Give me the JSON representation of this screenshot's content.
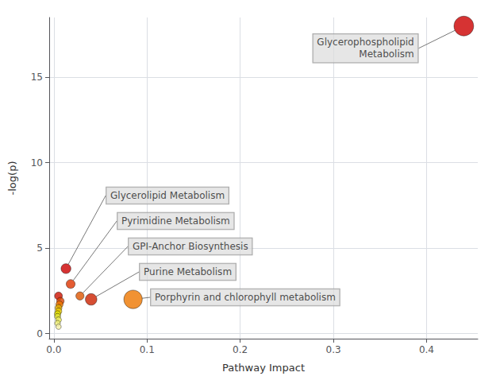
{
  "chart_data": {
    "type": "scatter",
    "xlabel": "Pathway Impact",
    "ylabel": "-log(p)",
    "x": [
      0.44,
      0.013,
      0.018,
      0.028,
      0.04,
      0.085,
      0.005,
      0.007,
      0.006,
      0.005,
      0.005,
      0.004,
      0.004,
      0.005,
      0.004,
      0.005
    ],
    "values": [
      18.0,
      3.8,
      2.9,
      2.2,
      2.0,
      2.0,
      2.2,
      1.9,
      1.7,
      1.5,
      1.3,
      1.15,
      1.0,
      0.8,
      0.6,
      0.4
    ],
    "sizes": [
      320,
      80,
      65,
      55,
      110,
      280,
      50,
      45,
      42,
      38,
      35,
      32,
      30,
      28,
      26,
      24
    ],
    "colors": [
      "#cc0000",
      "#cc0000",
      "#dd3300",
      "#dd5500",
      "#cc2200",
      "#ee7700",
      "#cc1100",
      "#dd4400",
      "#ee7700",
      "#ddaa00",
      "#eecc00",
      "#dddd00",
      "#dddd33",
      "#eeee55",
      "#eeee77",
      "#f5f0aa"
    ],
    "labels": [
      "Glycerophospholipid\nMetabolism",
      "Glycerolipid Metabolism",
      "Pyrimidine Metabolism",
      "GPI-Anchor Biosynthesis",
      "Purine Metabolism",
      "Porphyrin and chlorophyll metabolism",
      null,
      null,
      null,
      null,
      null,
      null,
      null,
      null,
      null,
      null
    ],
    "xlim": [
      -0.005,
      0.455
    ],
    "ylim": [
      -0.3,
      18.5
    ],
    "xticks": [
      {
        "value": 0,
        "label": "0.0"
      },
      0.1,
      0.2,
      0.3,
      0.4
    ],
    "yticks": [
      0,
      5,
      10,
      15
    ],
    "grid": true
  }
}
